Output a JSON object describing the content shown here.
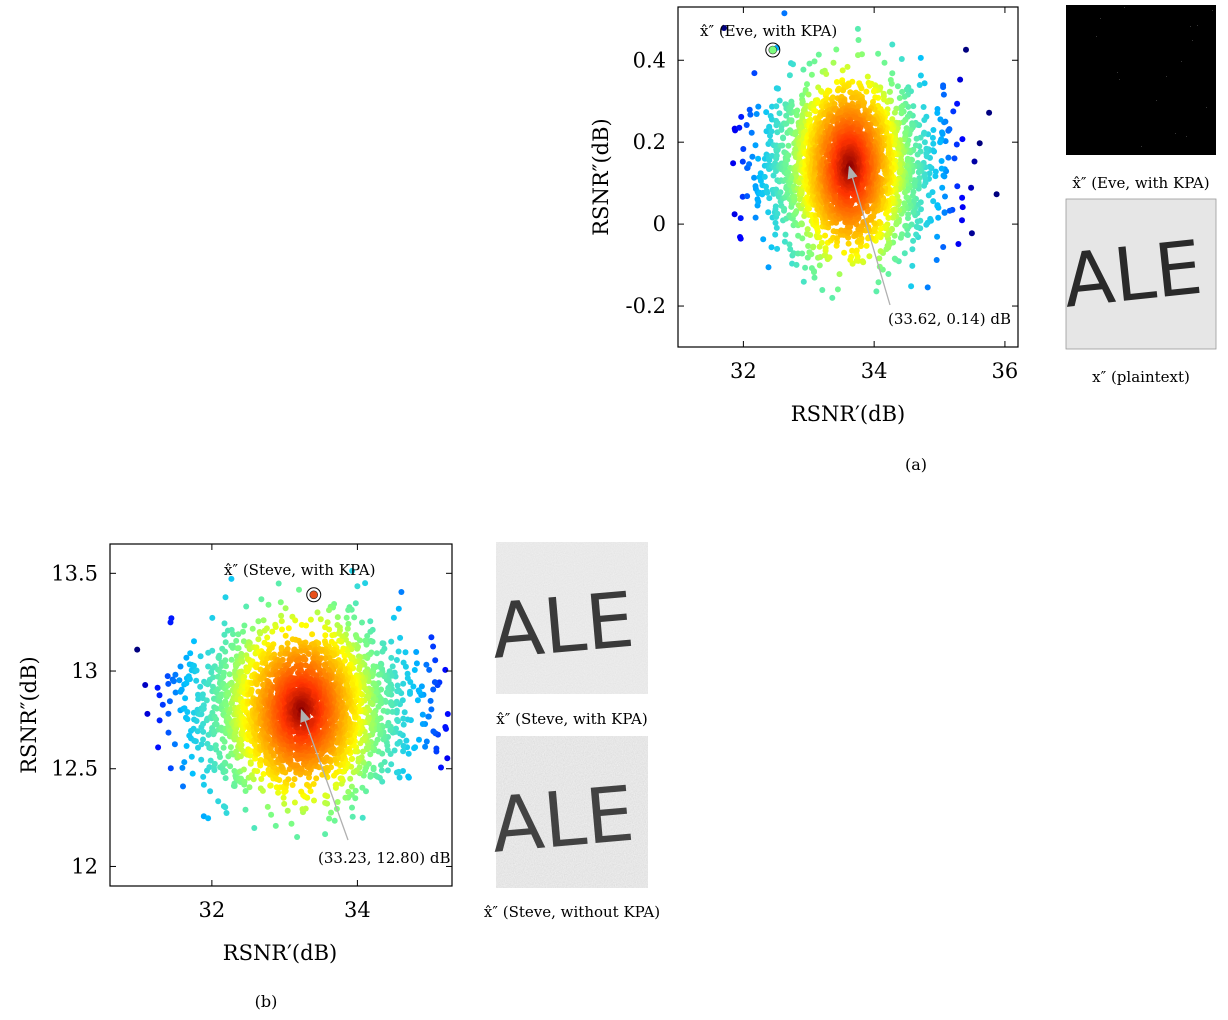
{
  "chart_data": [
    {
      "id": "a",
      "type": "scatter",
      "caption": "(a)",
      "xlabel": "RSNR′(dB)",
      "ylabel": "RSNR″(dB)",
      "xlim": [
        31.0,
        36.2
      ],
      "ylim": [
        -0.3,
        0.53
      ],
      "xticks": [
        32,
        34,
        36
      ],
      "xtick_labels": [
        "32",
        "34",
        "36"
      ],
      "yticks": [
        -0.2,
        0,
        0.2,
        0.4
      ],
      "ytick_labels": [
        "-0.2",
        "0",
        "0.2",
        "0.4"
      ],
      "grid": false,
      "colormap": "jet (density)",
      "center": {
        "x": 33.62,
        "y": 0.14
      },
      "spread": {
        "x": 0.62,
        "y": 0.1
      },
      "n_points": 2500,
      "seed": 11,
      "annotation": {
        "text": "(33.62, 0.14) dB",
        "x": 33.62,
        "y": 0.14
      },
      "highlight": {
        "label": "x̂″ (Eve, with KPA)",
        "x": 32.45,
        "y": 0.425,
        "color": "#7CFC7C"
      },
      "side_panels": [
        {
          "caption": "x̂″ (Eve, with KPA)",
          "kind": "noise"
        },
        {
          "caption": "x″ (plaintext)",
          "kind": "text",
          "text": "ALE"
        }
      ]
    },
    {
      "id": "b",
      "type": "scatter",
      "caption": "(b)",
      "xlabel": "RSNR′(dB)",
      "ylabel": "RSNR″(dB)",
      "xlim": [
        30.6,
        35.3
      ],
      "ylim": [
        11.9,
        13.65
      ],
      "xticks": [
        32,
        34
      ],
      "xtick_labels": [
        "32",
        "34"
      ],
      "yticks": [
        12,
        12.5,
        13,
        13.5
      ],
      "ytick_labels": [
        "12",
        "12.5",
        "13",
        "13.5"
      ],
      "grid": false,
      "colormap": "jet (density)",
      "center": {
        "x": 33.23,
        "y": 12.8
      },
      "spread": {
        "x": 0.72,
        "y": 0.2
      },
      "n_points": 2500,
      "seed": 23,
      "annotation": {
        "text": "(33.23, 12.80) dB",
        "x": 33.23,
        "y": 12.8
      },
      "highlight": {
        "label": "x̂″ (Steve, with KPA)",
        "x": 33.4,
        "y": 13.39,
        "color": "#E8501A"
      },
      "side_panels": [
        {
          "caption": "x̂″ (Steve, with KPA)",
          "kind": "text",
          "text": "ALE"
        },
        {
          "caption": "x̂″ (Steve, without KPA)",
          "kind": "text",
          "text": "ALE"
        }
      ]
    }
  ]
}
